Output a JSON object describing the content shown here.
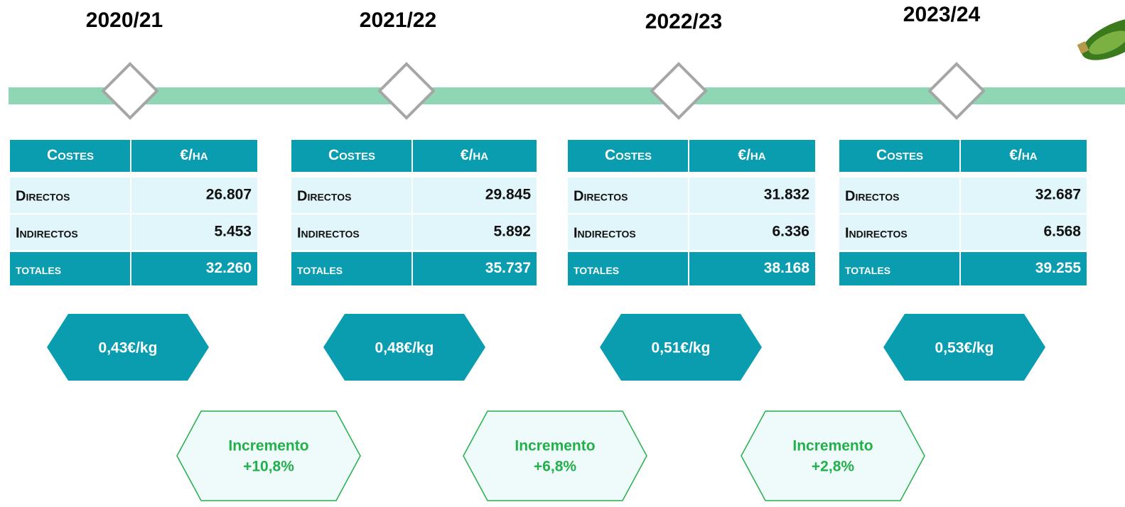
{
  "periods": [
    {
      "year": "2020/21",
      "table": {
        "header": [
          "Costes",
          "€/ha"
        ],
        "rows": [
          [
            "Directos",
            "26.807"
          ],
          [
            "Indirectos",
            "5.453"
          ],
          [
            "totales",
            "32.260"
          ]
        ]
      },
      "price": "0,43€/kg"
    },
    {
      "year": "2021/22",
      "table": {
        "header": [
          "Costes",
          "€/ha"
        ],
        "rows": [
          [
            "Directos",
            "29.845"
          ],
          [
            "Indirectos",
            "5.892"
          ],
          [
            "totales",
            "35.737"
          ]
        ]
      },
      "price": "0,48€/kg"
    },
    {
      "year": "2022/23",
      "table": {
        "header": [
          "Costes",
          "€/ha"
        ],
        "rows": [
          [
            "Directos",
            "31.832"
          ],
          [
            "Indirectos",
            "6.336"
          ],
          [
            "totales",
            "38.168"
          ]
        ]
      },
      "price": "0,51€/kg"
    },
    {
      "year": "2023/24",
      "table": {
        "header": [
          "Costes",
          "€/ha"
        ],
        "rows": [
          [
            "Directos",
            "32.687"
          ],
          [
            "Indirectos",
            "6.568"
          ],
          [
            "totales",
            "39.255"
          ]
        ]
      },
      "price": "0,53€/kg"
    }
  ],
  "increments": [
    {
      "label": "Incremento",
      "value": "+10,8%"
    },
    {
      "label": "Incremento",
      "value": "+6,8%"
    },
    {
      "label": "Incremento",
      "value": "+2,8%"
    }
  ]
}
